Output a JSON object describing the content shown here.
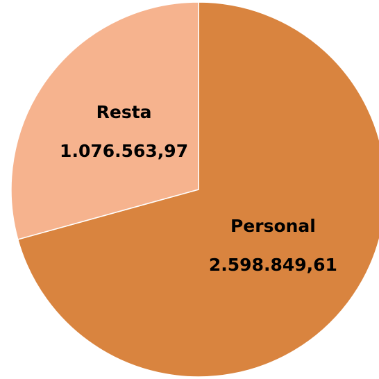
{
  "chart_data": {
    "type": "pie",
    "categories": [
      "Personal",
      "Resta"
    ],
    "values": [
      2598849.61,
      1076563.97
    ],
    "value_labels": [
      "2.598.849,61",
      "1.076.563,97"
    ],
    "colors": [
      "#D9843F",
      "#F6B38E"
    ]
  }
}
